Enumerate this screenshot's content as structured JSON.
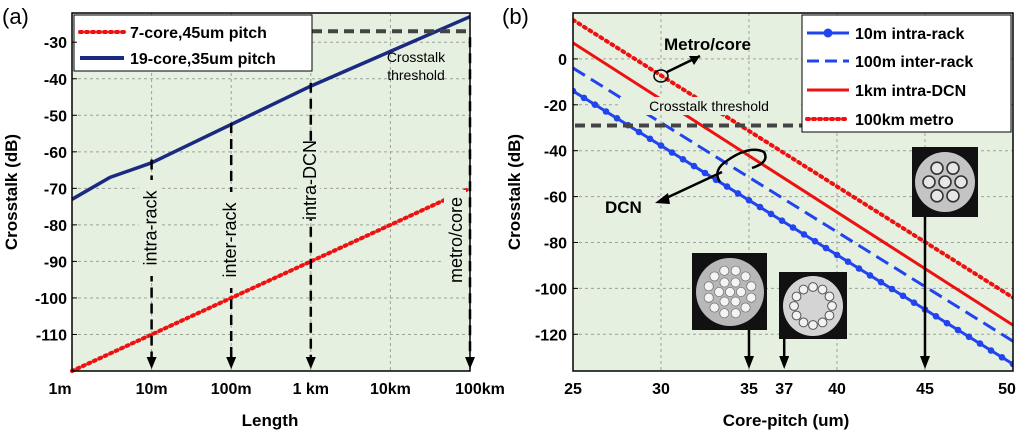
{
  "colors": {
    "plot_bg": "#e6f0e0",
    "grid": "#9aa39a",
    "navy": "#1a2a80",
    "red": "#ee1111",
    "blue": "#2244ee",
    "threshold": "#444444"
  },
  "chart_data": [
    {
      "type": "line",
      "panel_label": "(a)",
      "xlabel": "Length",
      "ylabel": "Crosstalk (dB)",
      "x_scale": "log",
      "xlim": [
        "1m",
        "100km"
      ],
      "ylim": [
        -120,
        -22
      ],
      "x_ticks": [
        {
          "label": "1m",
          "value_m": 1
        },
        {
          "label": "10m",
          "value_m": 10
        },
        {
          "label": "100m",
          "value_m": 100
        },
        {
          "label": "1 km",
          "value_m": 1000
        },
        {
          "label": "10km",
          "value_m": 10000
        },
        {
          "label": "100km",
          "value_m": 100000
        }
      ],
      "y_ticks": [
        -30,
        -40,
        -50,
        -60,
        -70,
        -80,
        -90,
        -100,
        -110
      ],
      "grid": true,
      "legend_position": "top-left",
      "series": [
        {
          "name": "7-core,45um pitch",
          "style": "dotted",
          "color": "red",
          "x_m": [
            1,
            10,
            100,
            1000,
            10000,
            100000
          ],
          "y": [
            -120,
            -110,
            -100,
            -90,
            -80,
            -70
          ]
        },
        {
          "name": "19-core,35um pitch",
          "style": "solid",
          "color": "navy",
          "x_m": [
            1,
            3,
            10,
            100,
            1000,
            10000,
            100000
          ],
          "y": [
            -73,
            -67,
            -63,
            -52.5,
            -42,
            -32.5,
            -23
          ]
        }
      ],
      "threshold": {
        "label": "Crosstalk threshold",
        "value": -27
      },
      "markers": [
        {
          "label": "intra-rack",
          "x_m": 10
        },
        {
          "label": "inter-rack",
          "x_m": 100
        },
        {
          "label": "intra-DCN",
          "x_m": 1000
        },
        {
          "label": "metro/core",
          "x_m": 100000
        }
      ]
    },
    {
      "type": "line",
      "panel_label": "(b)",
      "xlabel": "Core-pitch (um)",
      "ylabel": "Crosstalk (dB)",
      "xlim": [
        25,
        50
      ],
      "ylim": [
        -136,
        20
      ],
      "x_ticks": [
        25,
        30,
        35,
        37,
        40,
        45,
        50
      ],
      "y_ticks": [
        0,
        -20,
        -40,
        -60,
        -80,
        -100,
        -120
      ],
      "grid": true,
      "legend_position": "top-right",
      "series": [
        {
          "name": "10m intra-rack",
          "style": "solid-dots",
          "color": "blue",
          "x": [
            25,
            50
          ],
          "y": [
            -14,
            -133
          ]
        },
        {
          "name": "100m inter-rack",
          "style": "dashed",
          "color": "blue",
          "x": [
            25,
            50
          ],
          "y": [
            -4,
            -123
          ]
        },
        {
          "name": "1km intra-DCN",
          "style": "solid",
          "color": "red",
          "x": [
            25,
            50
          ],
          "y": [
            7,
            -116
          ]
        },
        {
          "name": "100km metro",
          "style": "dotted",
          "color": "red",
          "x": [
            25,
            50
          ],
          "y": [
            17,
            -104
          ]
        }
      ],
      "threshold": {
        "label": "Crosstalk threshold",
        "value": -29
      },
      "annotations": [
        {
          "label": "Metro/core"
        },
        {
          "label": "DCN"
        }
      ],
      "markers": [
        35,
        37,
        45
      ]
    }
  ]
}
